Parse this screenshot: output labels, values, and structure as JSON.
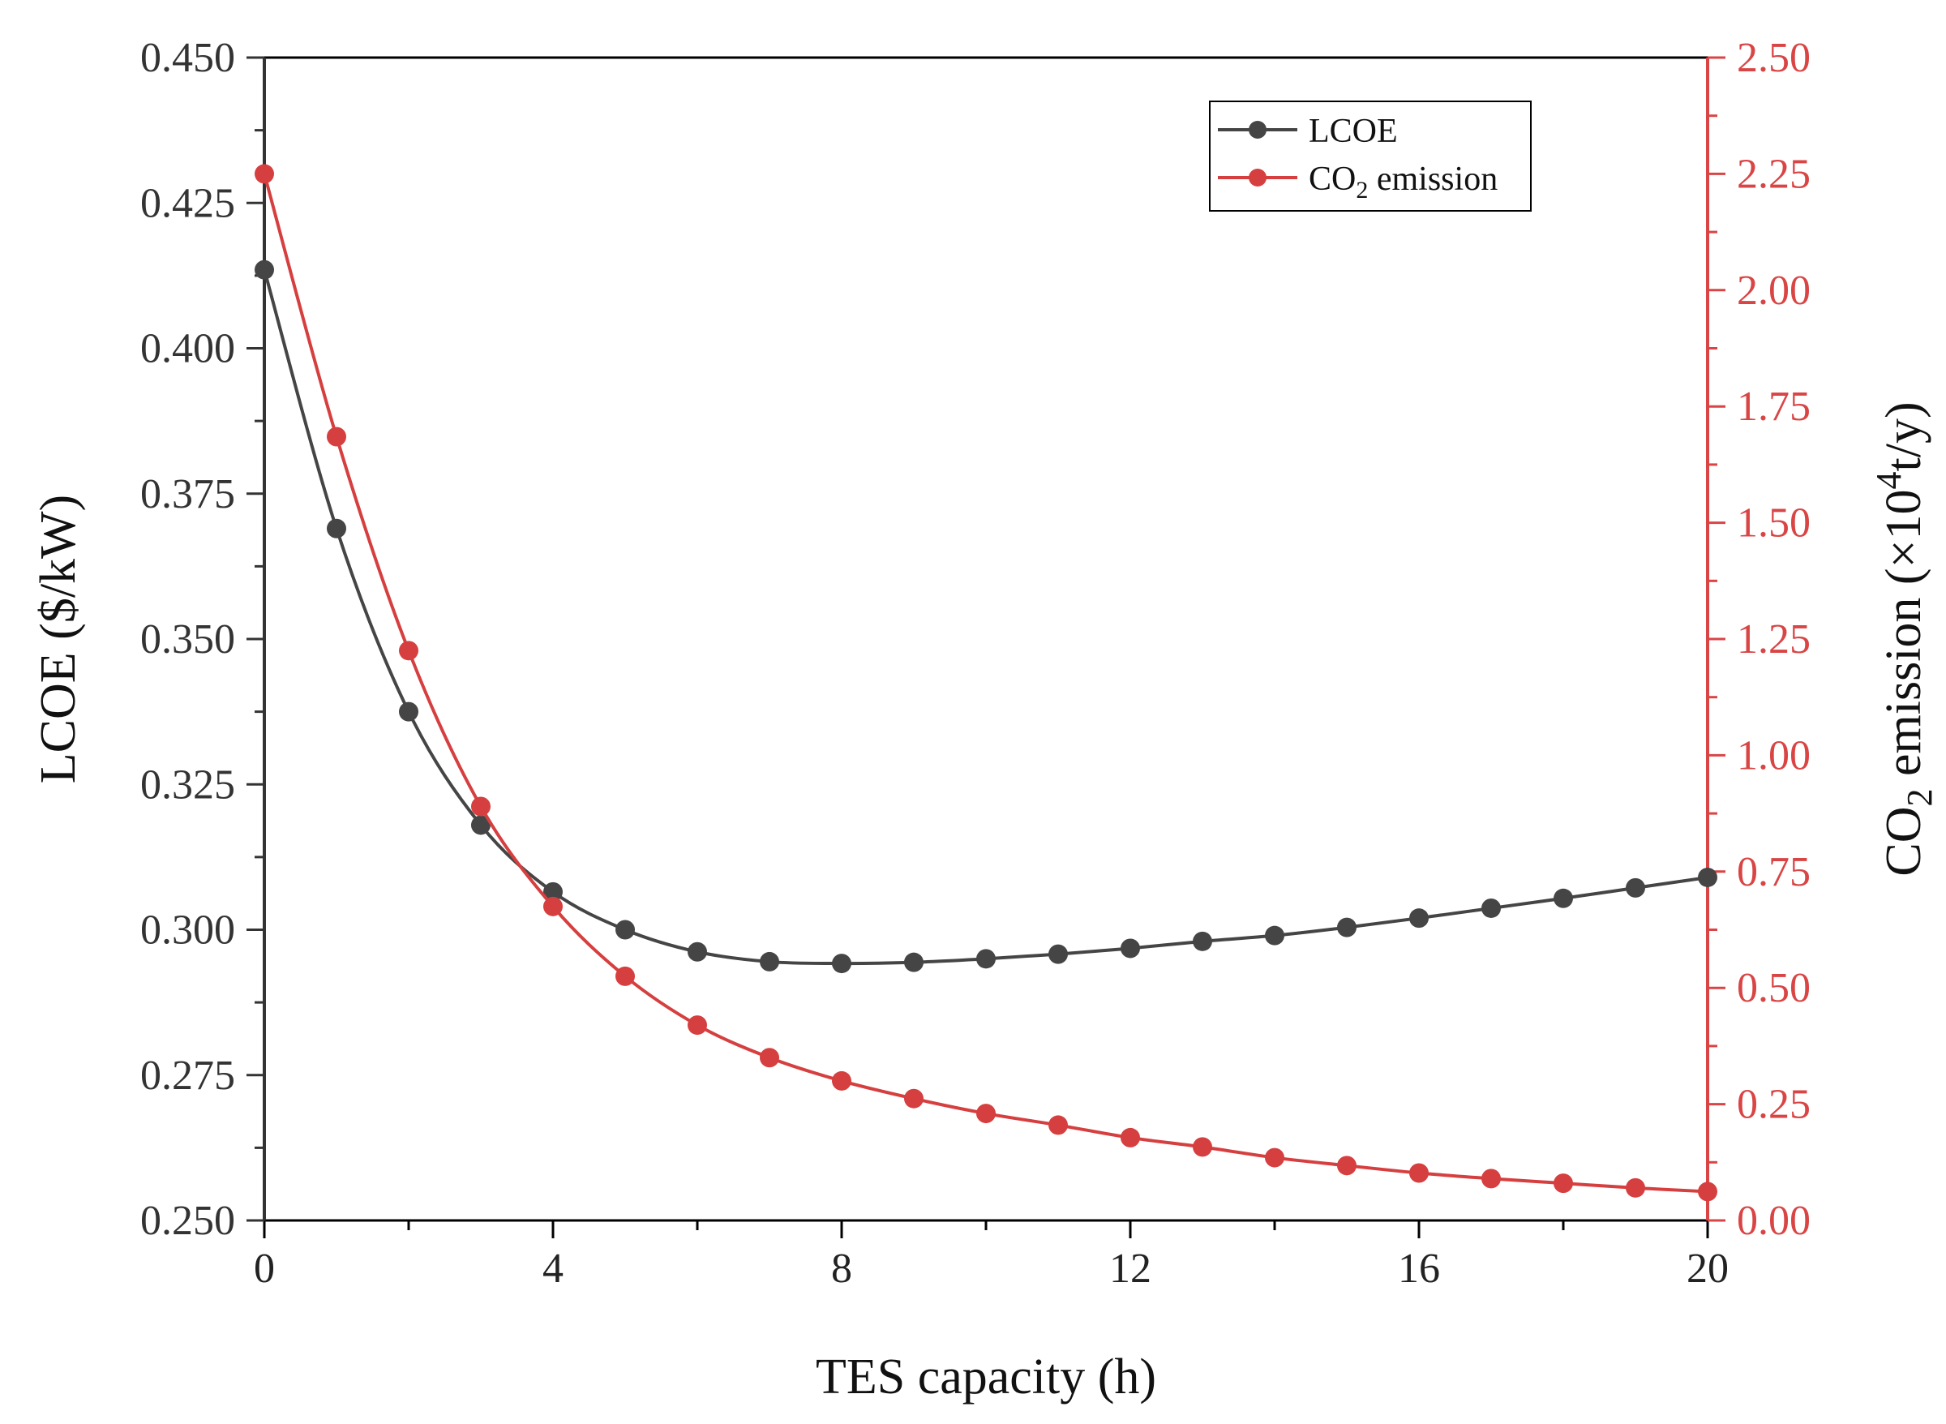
{
  "chart_data": {
    "type": "line",
    "xlabel": "TES capacity (h)",
    "ylabel_left": "LCOE ($/kW)",
    "ylabel_right": {
      "prefix": "CO",
      "sub": "2",
      "mid": " emission (×10",
      "sup": "4",
      "suffix": "t/y)"
    },
    "xlim": [
      0,
      20
    ],
    "ylim_left": [
      0.25,
      0.45
    ],
    "ylim_right": [
      0.0,
      2.5
    ],
    "x_ticks": [
      "0",
      "4",
      "8",
      "12",
      "16",
      "20"
    ],
    "y_left_ticks": [
      "0.250",
      "0.275",
      "0.300",
      "0.325",
      "0.350",
      "0.375",
      "0.400",
      "0.425",
      "0.450"
    ],
    "y_right_ticks": [
      "0.00",
      "0.25",
      "0.50",
      "0.75",
      "1.00",
      "1.25",
      "1.50",
      "1.75",
      "2.00",
      "2.25",
      "2.50"
    ],
    "legend_position": "top-right",
    "x": [
      0,
      1,
      2,
      3,
      4,
      5,
      6,
      7,
      8,
      9,
      10,
      11,
      12,
      13,
      14,
      15,
      16,
      17,
      18,
      19,
      20
    ],
    "series": [
      {
        "name": "LCOE",
        "axis": "left",
        "color": "#454545",
        "values": [
          0.4135,
          0.369,
          0.3375,
          0.318,
          0.3065,
          0.3,
          0.2962,
          0.2945,
          0.2942,
          0.2944,
          0.295,
          0.2958,
          0.2968,
          0.298,
          0.299,
          0.3004,
          0.302,
          0.3037,
          0.3054,
          0.3072,
          0.309
        ]
      },
      {
        "name": "CO2 emission",
        "legend": {
          "prefix": "CO",
          "sub": "2",
          "suffix": " emission"
        },
        "axis": "right",
        "color": "#d63f3f",
        "values": [
          2.25,
          1.685,
          1.225,
          0.89,
          0.675,
          0.525,
          0.42,
          0.35,
          0.3,
          0.262,
          0.23,
          0.205,
          0.178,
          0.158,
          0.135,
          0.118,
          0.102,
          0.09,
          0.08,
          0.07,
          0.062
        ]
      }
    ]
  }
}
